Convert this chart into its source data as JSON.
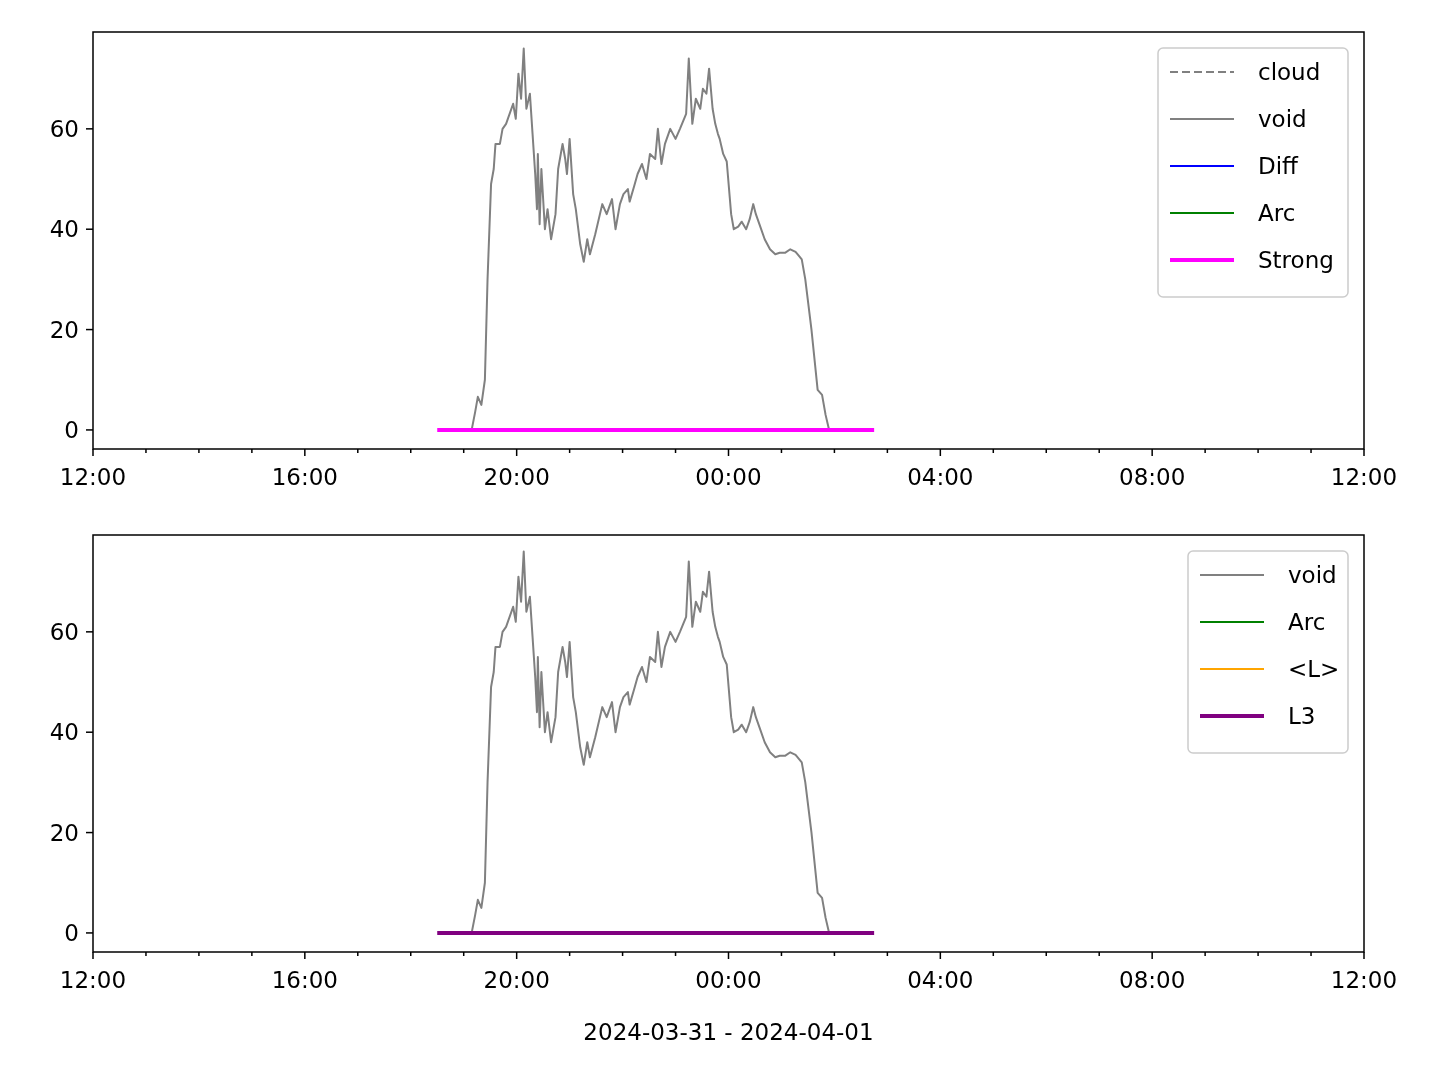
{
  "chart_data": [
    {
      "type": "line",
      "xlim": [
        "2024-03-31T12:00",
        "2024-04-01T12:00"
      ],
      "ylim": [
        -3.8,
        79.3
      ],
      "yticks": [
        0,
        20,
        40,
        60
      ],
      "xticks": [
        {
          "value": "2024-03-31T12:00",
          "label": "12:00"
        },
        {
          "value": "2024-03-31T13:00",
          "label": null
        },
        {
          "value": "2024-03-31T14:00",
          "label": null
        },
        {
          "value": "2024-03-31T15:00",
          "label": null
        },
        {
          "value": "2024-03-31T16:00",
          "label": "16:00"
        },
        {
          "value": "2024-03-31T17:00",
          "label": null
        },
        {
          "value": "2024-03-31T18:00",
          "label": null
        },
        {
          "value": "2024-03-31T19:00",
          "label": null
        },
        {
          "value": "2024-03-31T20:00",
          "label": "20:00"
        },
        {
          "value": "2024-03-31T21:00",
          "label": null
        },
        {
          "value": "2024-03-31T22:00",
          "label": null
        },
        {
          "value": "2024-03-31T23:00",
          "label": null
        },
        {
          "value": "2024-04-01T00:00",
          "label": "00:00"
        },
        {
          "value": "2024-04-01T01:00",
          "label": null
        },
        {
          "value": "2024-04-01T02:00",
          "label": null
        },
        {
          "value": "2024-04-01T03:00",
          "label": null
        },
        {
          "value": "2024-04-01T04:00",
          "label": "04:00"
        },
        {
          "value": "2024-04-01T05:00",
          "label": null
        },
        {
          "value": "2024-04-01T06:00",
          "label": null
        },
        {
          "value": "2024-04-01T07:00",
          "label": null
        },
        {
          "value": "2024-04-01T08:00",
          "label": "08:00"
        },
        {
          "value": "2024-04-01T09:00",
          "label": null
        },
        {
          "value": "2024-04-01T10:00",
          "label": null
        },
        {
          "value": "2024-04-01T11:00",
          "label": null
        },
        {
          "value": "2024-04-01T12:00",
          "label": "12:00"
        }
      ],
      "legend": "top right",
      "grid": false,
      "series": [
        {
          "name": "cloud",
          "color": "#808080",
          "line_style": "dashed"
        },
        {
          "name": "void",
          "color": "#808080",
          "line_style": "solid",
          "x": [
            "2024-03-31T19:09",
            "2024-03-31T19:13",
            "2024-03-31T19:16",
            "2024-03-31T19:20",
            "2024-03-31T19:24",
            "2024-03-31T19:27",
            "2024-03-31T19:31",
            "2024-03-31T19:34",
            "2024-03-31T19:36",
            "2024-03-31T19:41",
            "2024-03-31T19:44",
            "2024-03-31T19:48",
            "2024-03-31T19:52",
            "2024-03-31T19:56",
            "2024-03-31T19:59",
            "2024-03-31T20:02",
            "2024-03-31T20:05",
            "2024-03-31T20:08",
            "2024-03-31T20:11",
            "2024-03-31T20:15",
            "2024-03-31T20:18",
            "2024-03-31T20:21",
            "2024-03-31T20:23",
            "2024-03-31T20:24",
            "2024-03-31T20:26",
            "2024-03-31T20:28",
            "2024-03-31T20:32",
            "2024-03-31T20:35",
            "2024-03-31T20:39",
            "2024-03-31T20:44",
            "2024-03-31T20:47",
            "2024-03-31T20:52",
            "2024-03-31T20:55",
            "2024-03-31T20:57",
            "2024-03-31T21:00",
            "2024-03-31T21:04",
            "2024-03-31T21:07",
            "2024-03-31T21:12",
            "2024-03-31T21:16",
            "2024-03-31T21:20",
            "2024-03-31T21:23",
            "2024-03-31T21:29",
            "2024-03-31T21:37",
            "2024-03-31T21:42",
            "2024-03-31T21:48",
            "2024-03-31T21:52",
            "2024-03-31T21:57",
            "2024-03-31T22:01",
            "2024-03-31T22:06",
            "2024-03-31T22:08",
            "2024-03-31T22:13",
            "2024-03-31T22:17",
            "2024-03-31T22:22",
            "2024-03-31T22:27",
            "2024-03-31T22:31",
            "2024-03-31T22:37",
            "2024-03-31T22:40",
            "2024-03-31T22:44",
            "2024-03-31T22:48",
            "2024-03-31T22:54",
            "2024-03-31T23:00",
            "2024-03-31T23:05",
            "2024-03-31T23:12",
            "2024-03-31T23:15",
            "2024-03-31T23:19",
            "2024-03-31T23:23",
            "2024-03-31T23:28",
            "2024-03-31T23:31",
            "2024-03-31T23:35",
            "2024-03-31T23:38",
            "2024-03-31T23:42",
            "2024-03-31T23:45",
            "2024-03-31T23:48",
            "2024-03-31T23:50",
            "2024-03-31T23:54",
            "2024-03-31T23:58",
            "2024-04-01T00:03",
            "2024-04-01T00:06",
            "2024-04-01T00:11",
            "2024-04-01T00:15",
            "2024-04-01T00:20",
            "2024-04-01T00:24",
            "2024-04-01T00:28",
            "2024-04-01T00:31",
            "2024-04-01T00:35",
            "2024-04-01T00:41",
            "2024-04-01T00:47",
            "2024-04-01T00:53",
            "2024-04-01T00:58",
            "2024-04-01T01:04",
            "2024-04-01T01:10",
            "2024-04-01T01:16",
            "2024-04-01T01:23",
            "2024-04-01T01:27",
            "2024-04-01T01:34",
            "2024-04-01T01:41",
            "2024-04-01T01:46",
            "2024-04-01T01:50",
            "2024-04-01T01:54"
          ],
          "values": [
            0,
            3.6,
            6.6,
            5,
            10,
            30,
            49,
            52,
            57,
            57,
            60,
            61,
            63,
            65,
            62,
            71,
            66,
            76,
            64,
            67,
            59,
            51,
            44,
            55,
            41,
            52,
            40,
            44,
            38,
            43,
            52,
            57,
            54,
            51,
            58,
            47,
            44,
            37,
            33.5,
            38,
            35,
            39,
            45,
            43,
            46,
            40,
            45,
            47,
            48,
            45.5,
            48.5,
            51,
            53,
            50,
            55,
            54,
            60,
            53,
            57,
            60,
            58,
            60,
            63,
            74,
            61,
            66,
            64,
            68,
            67,
            72,
            64,
            61,
            59,
            58,
            55,
            53.5,
            43,
            40,
            40.5,
            41.5,
            40,
            42,
            45,
            43,
            41,
            38,
            36,
            35,
            35.3,
            35.3,
            36,
            35.5,
            34,
            30,
            20,
            8,
            7,
            3,
            0
          ]
        },
        {
          "name": "Diff",
          "color": "#0000ff",
          "line_style": "solid"
        },
        {
          "name": "Arc",
          "color": "#008000",
          "line_style": "solid"
        },
        {
          "name": "Strong",
          "color": "#ff00ff",
          "line_style": "solid",
          "x": [
            "2024-03-31T18:30",
            "2024-04-01T02:45"
          ],
          "values": [
            0,
            0
          ]
        }
      ]
    },
    {
      "type": "line",
      "xlabel": "2024-03-31 - 2024-04-01",
      "xlim": [
        "2024-03-31T12:00",
        "2024-04-01T12:00"
      ],
      "ylim": [
        -3.8,
        79.3
      ],
      "yticks": [
        0,
        20,
        40,
        60
      ],
      "xticks": [
        {
          "value": "2024-03-31T12:00",
          "label": "12:00"
        },
        {
          "value": "2024-03-31T13:00",
          "label": null
        },
        {
          "value": "2024-03-31T14:00",
          "label": null
        },
        {
          "value": "2024-03-31T15:00",
          "label": null
        },
        {
          "value": "2024-03-31T16:00",
          "label": "16:00"
        },
        {
          "value": "2024-03-31T17:00",
          "label": null
        },
        {
          "value": "2024-03-31T18:00",
          "label": null
        },
        {
          "value": "2024-03-31T19:00",
          "label": null
        },
        {
          "value": "2024-03-31T20:00",
          "label": "20:00"
        },
        {
          "value": "2024-03-31T21:00",
          "label": null
        },
        {
          "value": "2024-03-31T22:00",
          "label": null
        },
        {
          "value": "2024-03-31T23:00",
          "label": null
        },
        {
          "value": "2024-04-01T00:00",
          "label": "00:00"
        },
        {
          "value": "2024-04-01T01:00",
          "label": null
        },
        {
          "value": "2024-04-01T02:00",
          "label": null
        },
        {
          "value": "2024-04-01T03:00",
          "label": null
        },
        {
          "value": "2024-04-01T04:00",
          "label": "04:00"
        },
        {
          "value": "2024-04-01T05:00",
          "label": null
        },
        {
          "value": "2024-04-01T06:00",
          "label": null
        },
        {
          "value": "2024-04-01T07:00",
          "label": null
        },
        {
          "value": "2024-04-01T08:00",
          "label": "08:00"
        },
        {
          "value": "2024-04-01T09:00",
          "label": null
        },
        {
          "value": "2024-04-01T10:00",
          "label": null
        },
        {
          "value": "2024-04-01T11:00",
          "label": null
        },
        {
          "value": "2024-04-01T12:00",
          "label": "12:00"
        }
      ],
      "legend": "top right",
      "grid": false,
      "series": [
        {
          "name": "void",
          "color": "#808080",
          "line_style": "solid",
          "x": [
            "2024-03-31T19:09",
            "2024-03-31T19:13",
            "2024-03-31T19:16",
            "2024-03-31T19:20",
            "2024-03-31T19:24",
            "2024-03-31T19:27",
            "2024-03-31T19:31",
            "2024-03-31T19:34",
            "2024-03-31T19:36",
            "2024-03-31T19:41",
            "2024-03-31T19:44",
            "2024-03-31T19:48",
            "2024-03-31T19:52",
            "2024-03-31T19:56",
            "2024-03-31T19:59",
            "2024-03-31T20:02",
            "2024-03-31T20:05",
            "2024-03-31T20:08",
            "2024-03-31T20:11",
            "2024-03-31T20:15",
            "2024-03-31T20:18",
            "2024-03-31T20:21",
            "2024-03-31T20:23",
            "2024-03-31T20:24",
            "2024-03-31T20:26",
            "2024-03-31T20:28",
            "2024-03-31T20:32",
            "2024-03-31T20:35",
            "2024-03-31T20:39",
            "2024-03-31T20:44",
            "2024-03-31T20:47",
            "2024-03-31T20:52",
            "2024-03-31T20:55",
            "2024-03-31T20:57",
            "2024-03-31T21:00",
            "2024-03-31T21:04",
            "2024-03-31T21:07",
            "2024-03-31T21:12",
            "2024-03-31T21:16",
            "2024-03-31T21:20",
            "2024-03-31T21:23",
            "2024-03-31T21:29",
            "2024-03-31T21:37",
            "2024-03-31T21:42",
            "2024-03-31T21:48",
            "2024-03-31T21:52",
            "2024-03-31T21:57",
            "2024-03-31T22:01",
            "2024-03-31T22:06",
            "2024-03-31T22:08",
            "2024-03-31T22:13",
            "2024-03-31T22:17",
            "2024-03-31T22:22",
            "2024-03-31T22:27",
            "2024-03-31T22:31",
            "2024-03-31T22:37",
            "2024-03-31T22:40",
            "2024-03-31T22:44",
            "2024-03-31T22:48",
            "2024-03-31T22:54",
            "2024-03-31T23:00",
            "2024-03-31T23:05",
            "2024-03-31T23:12",
            "2024-03-31T23:15",
            "2024-03-31T23:19",
            "2024-03-31T23:23",
            "2024-03-31T23:28",
            "2024-03-31T23:31",
            "2024-03-31T23:35",
            "2024-03-31T23:38",
            "2024-03-31T23:42",
            "2024-03-31T23:45",
            "2024-03-31T23:48",
            "2024-03-31T23:50",
            "2024-03-31T23:54",
            "2024-03-31T23:58",
            "2024-04-01T00:03",
            "2024-04-01T00:06",
            "2024-04-01T00:11",
            "2024-04-01T00:15",
            "2024-04-01T00:20",
            "2024-04-01T00:24",
            "2024-04-01T00:28",
            "2024-04-01T00:31",
            "2024-04-01T00:35",
            "2024-04-01T00:41",
            "2024-04-01T00:47",
            "2024-04-01T00:53",
            "2024-04-01T00:58",
            "2024-04-01T01:04",
            "2024-04-01T01:10",
            "2024-04-01T01:16",
            "2024-04-01T01:23",
            "2024-04-01T01:27",
            "2024-04-01T01:34",
            "2024-04-01T01:41",
            "2024-04-01T01:46",
            "2024-04-01T01:50",
            "2024-04-01T01:54"
          ],
          "values": [
            0,
            3.6,
            6.6,
            5,
            10,
            30,
            49,
            52,
            57,
            57,
            60,
            61,
            63,
            65,
            62,
            71,
            66,
            76,
            64,
            67,
            59,
            51,
            44,
            55,
            41,
            52,
            40,
            44,
            38,
            43,
            52,
            57,
            54,
            51,
            58,
            47,
            44,
            37,
            33.5,
            38,
            35,
            39,
            45,
            43,
            46,
            40,
            45,
            47,
            48,
            45.5,
            48.5,
            51,
            53,
            50,
            55,
            54,
            60,
            53,
            57,
            60,
            58,
            60,
            63,
            74,
            61,
            66,
            64,
            68,
            67,
            72,
            64,
            61,
            59,
            58,
            55,
            53.5,
            43,
            40,
            40.5,
            41.5,
            40,
            42,
            45,
            43,
            41,
            38,
            36,
            35,
            35.3,
            35.3,
            36,
            35.5,
            34,
            30,
            20,
            8,
            7,
            3,
            0
          ]
        },
        {
          "name": "Arc",
          "color": "#008000",
          "line_style": "solid"
        },
        {
          "name": "<L>",
          "color": "#ffa500",
          "line_style": "solid"
        },
        {
          "name": "L3",
          "color": "#800080",
          "line_style": "solid",
          "x": [
            "2024-03-31T18:30",
            "2024-04-01T02:45"
          ],
          "values": [
            0,
            0
          ]
        }
      ]
    }
  ]
}
